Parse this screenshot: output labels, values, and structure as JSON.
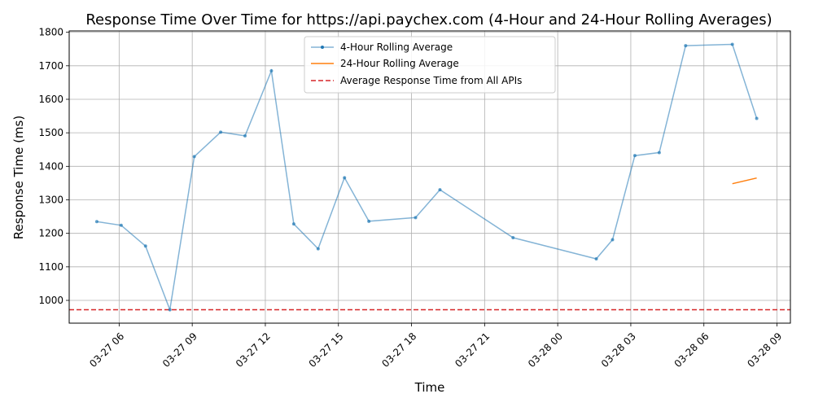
{
  "chart_data": {
    "type": "line",
    "title": "Response Time Over Time for https://api.paychex.com (4-Hour and 24-Hour Rolling Averages)",
    "xlabel": "Time",
    "ylabel": "Response Time (ms)",
    "x_is_datetime": true,
    "xlim": [
      "2024-03-27 03:57",
      "2024-03-28 09:33"
    ],
    "ylim": [
      932,
      1804
    ],
    "x_ticks": [
      {
        "t": "2024-03-27 06:00",
        "label": "03-27 06"
      },
      {
        "t": "2024-03-27 09:00",
        "label": "03-27 09"
      },
      {
        "t": "2024-03-27 12:00",
        "label": "03-27 12"
      },
      {
        "t": "2024-03-27 15:00",
        "label": "03-27 15"
      },
      {
        "t": "2024-03-27 18:00",
        "label": "03-27 18"
      },
      {
        "t": "2024-03-27 21:00",
        "label": "03-27 21"
      },
      {
        "t": "2024-03-28 00:00",
        "label": "03-28 00"
      },
      {
        "t": "2024-03-28 03:00",
        "label": "03-28 03"
      },
      {
        "t": "2024-03-28 06:00",
        "label": "03-28 06"
      },
      {
        "t": "2024-03-28 09:00",
        "label": "03-28 09"
      }
    ],
    "y_ticks": [
      1000,
      1100,
      1200,
      1300,
      1400,
      1500,
      1600,
      1700,
      1800
    ],
    "grid": true,
    "legend_position": "top-center",
    "series": [
      {
        "name": "4-Hour Rolling Average",
        "color": "#1f77b4",
        "style": "line-with-dots",
        "points": [
          {
            "t": "2024-03-27 05:05",
            "y": 1235
          },
          {
            "t": "2024-03-27 06:05",
            "y": 1224
          },
          {
            "t": "2024-03-27 07:05",
            "y": 1162
          },
          {
            "t": "2024-03-27 08:05",
            "y": 972
          },
          {
            "t": "2024-03-27 09:05",
            "y": 1429
          },
          {
            "t": "2024-03-27 10:10",
            "y": 1502
          },
          {
            "t": "2024-03-27 11:10",
            "y": 1491
          },
          {
            "t": "2024-03-27 12:15",
            "y": 1685
          },
          {
            "t": "2024-03-27 13:10",
            "y": 1228
          },
          {
            "t": "2024-03-27 14:10",
            "y": 1154
          },
          {
            "t": "2024-03-27 15:15",
            "y": 1366
          },
          {
            "t": "2024-03-27 16:15",
            "y": 1236
          },
          {
            "t": "2024-03-27 18:10",
            "y": 1247
          },
          {
            "t": "2024-03-27 19:10",
            "y": 1330
          },
          {
            "t": "2024-03-27 22:10",
            "y": 1187
          },
          {
            "t": "2024-03-28 01:35",
            "y": 1124
          },
          {
            "t": "2024-03-28 02:15",
            "y": 1181
          },
          {
            "t": "2024-03-28 03:10",
            "y": 1432
          },
          {
            "t": "2024-03-28 04:10",
            "y": 1441
          },
          {
            "t": "2024-03-28 05:15",
            "y": 1760
          },
          {
            "t": "2024-03-28 07:10",
            "y": 1764
          },
          {
            "t": "2024-03-28 08:10",
            "y": 1543
          }
        ]
      },
      {
        "name": "24-Hour Rolling Average",
        "color": "#ff7f0e",
        "style": "line",
        "points": [
          {
            "t": "2024-03-28 07:10",
            "y": 1348
          },
          {
            "t": "2024-03-28 08:10",
            "y": 1365
          }
        ]
      }
    ],
    "hlines": [
      {
        "name": "Average Response Time from All APIs",
        "y": 972,
        "color": "#d62728",
        "style": "dashed"
      }
    ]
  }
}
